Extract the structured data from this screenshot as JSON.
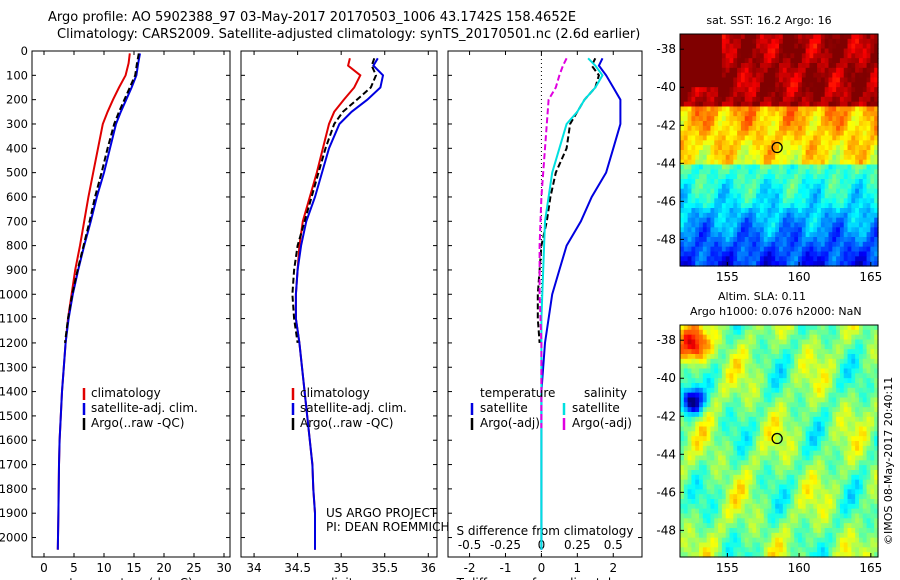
{
  "header": {
    "title_line1": "Argo profile: AO 5902388_97 03-May-2017 20170503_1006 43.1742S 158.4652E",
    "title_line2": "Climatology: CARS2009. Satellite-adjusted climatology: synTS_20170501.nc (2.6d earlier)"
  },
  "colors": {
    "climatology": "#e00000",
    "satellite": "#0000e0",
    "argo": "#000000",
    "satellite_salinity": "#00e0e0",
    "argo_salinity_diff": "#e000e0"
  },
  "chart_data": [
    {
      "id": "temperature",
      "type": "line",
      "xlabel": "temperature (deg C)",
      "ylabel": "",
      "xlim": [
        -2,
        31
      ],
      "ylim": [
        2080,
        0
      ],
      "xticks": [
        0,
        5,
        10,
        15,
        20,
        25,
        30
      ],
      "yticks": [
        0,
        100,
        200,
        300,
        400,
        500,
        600,
        700,
        800,
        900,
        1000,
        1100,
        1200,
        1300,
        1400,
        1500,
        1600,
        1700,
        1800,
        1900,
        2000
      ],
      "legend": [
        "climatology",
        "satellite-adj. clim.",
        "Argo(..raw -QC)"
      ],
      "legend_position": "lower-center",
      "series": [
        {
          "role": "climatology",
          "style": "solid",
          "x": [
            14.3,
            14.1,
            13.6,
            12.5,
            11.5,
            10.6,
            9.8,
            9.0,
            8.2,
            7.4,
            6.7,
            6.0,
            5.2,
            4.6,
            4.0,
            3.6,
            3.3,
            3.0,
            2.8,
            2.6,
            2.5,
            2.4,
            2.3
          ],
          "y": [
            10,
            50,
            100,
            150,
            200,
            250,
            300,
            400,
            500,
            600,
            700,
            800,
            900,
            1000,
            1100,
            1200,
            1300,
            1400,
            1500,
            1600,
            1700,
            1900,
            2050
          ]
        },
        {
          "role": "satellite",
          "style": "solid",
          "x": [
            16.0,
            15.7,
            15.4,
            14.6,
            13.7,
            12.8,
            12.0,
            11.0,
            10.0,
            8.8,
            7.8,
            6.7,
            5.7,
            4.8,
            4.1,
            3.6,
            3.3,
            3.0,
            2.8,
            2.6,
            2.5,
            2.4,
            2.3
          ],
          "y": [
            10,
            50,
            100,
            150,
            200,
            250,
            300,
            400,
            500,
            600,
            700,
            800,
            900,
            1000,
            1100,
            1200,
            1300,
            1400,
            1500,
            1600,
            1700,
            1900,
            2050
          ]
        },
        {
          "role": "argo",
          "style": "dashed",
          "x": [
            15.8,
            15.5,
            15.2,
            14.3,
            13.4,
            12.5,
            11.7,
            10.6,
            9.6,
            8.5,
            7.6,
            6.6,
            5.6,
            4.7,
            4.0,
            3.5
          ],
          "y": [
            10,
            50,
            100,
            150,
            200,
            250,
            300,
            400,
            500,
            600,
            700,
            800,
            900,
            1000,
            1100,
            1200
          ]
        }
      ]
    },
    {
      "id": "salinity",
      "type": "line",
      "xlabel": "salinity",
      "ylabel": "",
      "xlim": [
        33.85,
        36.1
      ],
      "ylim": [
        2080,
        0
      ],
      "xticks": [
        34,
        34.5,
        35,
        35.5,
        36
      ],
      "legend": [
        "climatology",
        "satellite-adj. clim.",
        "Argo(..raw -QC)"
      ],
      "legend_position": "lower-center",
      "annotation": [
        "US ARGO PROJECT",
        "PI: DEAN ROEMMICH"
      ],
      "series": [
        {
          "role": "climatology",
          "style": "solid",
          "x": [
            35.1,
            35.08,
            35.22,
            35.15,
            35.03,
            34.92,
            34.86,
            34.79,
            34.72,
            34.64,
            34.56,
            34.52,
            34.5,
            34.48,
            34.48,
            34.52,
            34.58,
            34.64,
            34.67,
            34.68,
            34.7,
            34.7
          ],
          "y": [
            30,
            60,
            100,
            150,
            200,
            250,
            300,
            400,
            500,
            600,
            700,
            800,
            900,
            1000,
            1100,
            1200,
            1400,
            1600,
            1700,
            1800,
            1900,
            2050
          ]
        },
        {
          "role": "satellite",
          "style": "solid",
          "x": [
            35.42,
            35.37,
            35.48,
            35.45,
            35.3,
            35.12,
            34.98,
            34.86,
            34.78,
            34.7,
            34.6,
            34.54,
            34.5,
            34.48,
            34.48,
            34.52,
            34.58,
            34.64,
            34.67,
            34.68,
            34.7,
            34.7
          ],
          "y": [
            30,
            60,
            100,
            150,
            200,
            250,
            300,
            400,
            500,
            600,
            700,
            800,
            900,
            1000,
            1100,
            1200,
            1400,
            1600,
            1700,
            1800,
            1900,
            2050
          ]
        },
        {
          "role": "argo",
          "style": "dashed",
          "x": [
            35.38,
            35.35,
            35.4,
            35.34,
            35.18,
            35.02,
            34.92,
            34.82,
            34.74,
            34.66,
            34.58,
            34.5,
            34.46,
            34.44,
            34.46,
            34.5
          ],
          "y": [
            30,
            60,
            100,
            150,
            200,
            250,
            300,
            400,
            500,
            600,
            700,
            800,
            900,
            1000,
            1100,
            1200
          ]
        }
      ]
    },
    {
      "id": "difference",
      "type": "line",
      "xlabel": "T difference from climatology",
      "top_axis_label": "S difference from climatology",
      "ylabel": "",
      "xlim": [
        -2.6,
        2.8
      ],
      "ylim": [
        2080,
        0
      ],
      "xticks": [
        -2,
        -1,
        0,
        1,
        2
      ],
      "top_ticks": [
        -0.5,
        -0.25,
        0,
        0.25,
        0.5
      ],
      "top_tick_labels": [
        "-0.5",
        "-0.25",
        "0",
        "0.25",
        "0.5"
      ],
      "top_tick_positions": [
        -2,
        -1,
        0,
        1,
        2
      ],
      "legend_groups": [
        {
          "heading": "temperature",
          "items": [
            "satellite",
            "Argo(-adj)"
          ]
        },
        {
          "heading": "salinity",
          "items": [
            "satellite",
            "Argo(-adj)"
          ]
        }
      ],
      "series": [
        {
          "role": "temperature-satellite",
          "style": "solid",
          "x": [
            1.7,
            1.6,
            1.8,
            2.0,
            2.2,
            2.2,
            2.2,
            2.0,
            1.8,
            1.4,
            1.1,
            0.7,
            0.5,
            0.3,
            0.1,
            0.0,
            0.0,
            0.0
          ],
          "y": [
            30,
            60,
            100,
            150,
            200,
            250,
            300,
            400,
            500,
            600,
            700,
            800,
            900,
            1000,
            1200,
            1400,
            1700,
            2050
          ]
        },
        {
          "role": "temperature-argo",
          "style": "dashed",
          "x": [
            1.5,
            1.4,
            1.6,
            1.5,
            1.2,
            1.0,
            0.8,
            0.7,
            0.4,
            0.25,
            0.15,
            0.0,
            -0.05,
            -0.1,
            -0.1,
            -0.05
          ],
          "y": [
            30,
            60,
            100,
            150,
            200,
            250,
            300,
            400,
            500,
            600,
            700,
            800,
            900,
            1000,
            1100,
            1200
          ]
        },
        {
          "role": "salinity-satellite",
          "style": "solid",
          "x": [
            1.3,
            1.5,
            1.7,
            1.5,
            1.2,
            1.0,
            0.7,
            0.5,
            0.3,
            0.2,
            0.1,
            0.05,
            0.0,
            0.0,
            0.0,
            0.0
          ],
          "y": [
            30,
            60,
            100,
            150,
            200,
            250,
            300,
            400,
            500,
            600,
            700,
            900,
            1100,
            1400,
            1700,
            2050
          ]
        },
        {
          "role": "salinity-argo",
          "style": "dashed",
          "x": [
            0.7,
            0.6,
            0.5,
            0.4,
            0.2,
            0.15,
            0.1,
            0.0,
            -0.05,
            -0.05,
            0.0,
            0.0
          ],
          "y": [
            30,
            60,
            100,
            150,
            200,
            300,
            400,
            600,
            800,
            1000,
            1200,
            1550
          ]
        }
      ]
    }
  ],
  "sst_map": {
    "title": "sat. SST: 16.2  Argo: 16",
    "xticks": [
      "155",
      "160",
      "165"
    ],
    "yticks": [
      "-38",
      "-40",
      "-42",
      "-44",
      "-46",
      "-48"
    ],
    "marker_lon": 158.47,
    "marker_lat": -43.17
  },
  "sla_map": {
    "title_line1": "Altim. SLA: 0.11",
    "title_line2": "Argo h1000: 0.076 h2000: NaN",
    "xticks": [
      "155",
      "160",
      "165"
    ],
    "yticks": [
      "-38",
      "-40",
      "-42",
      "-44",
      "-46",
      "-48"
    ],
    "marker_lon": 158.47,
    "marker_lat": -43.17
  },
  "credit": "©IMOS 08-May-2017 20:40:11"
}
